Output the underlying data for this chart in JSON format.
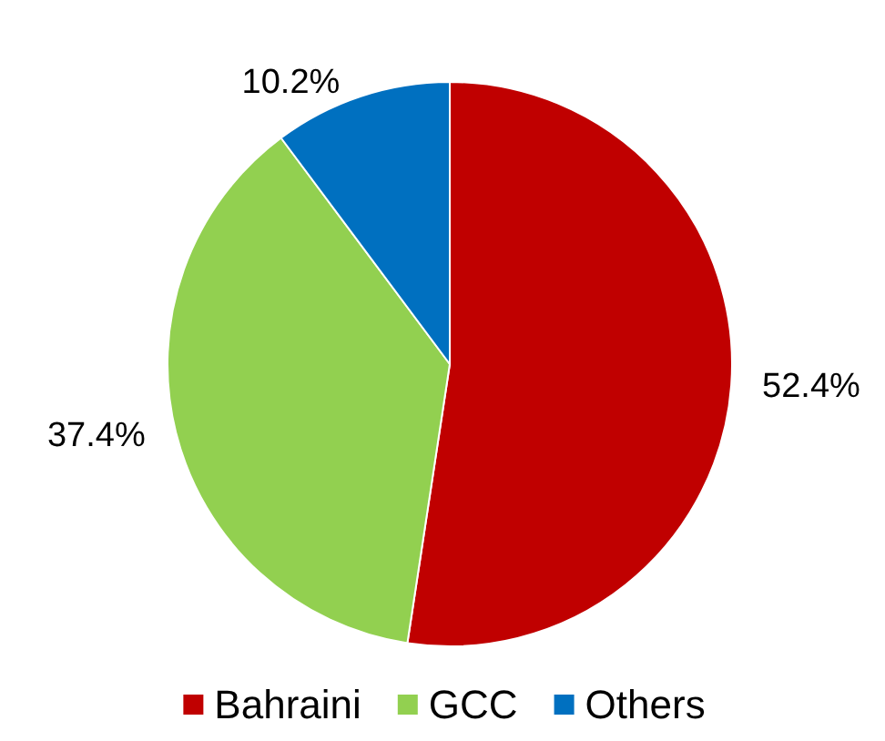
{
  "chart_data": {
    "type": "pie",
    "categories": [
      "Bahraini",
      "GCC",
      "Others"
    ],
    "values": [
      52.4,
      37.4,
      10.2
    ],
    "colors": [
      "#c00000",
      "#92d050",
      "#0070c0"
    ],
    "value_labels": [
      "52.4%",
      "37.4%",
      "10.2%"
    ],
    "legend": "bottom"
  }
}
